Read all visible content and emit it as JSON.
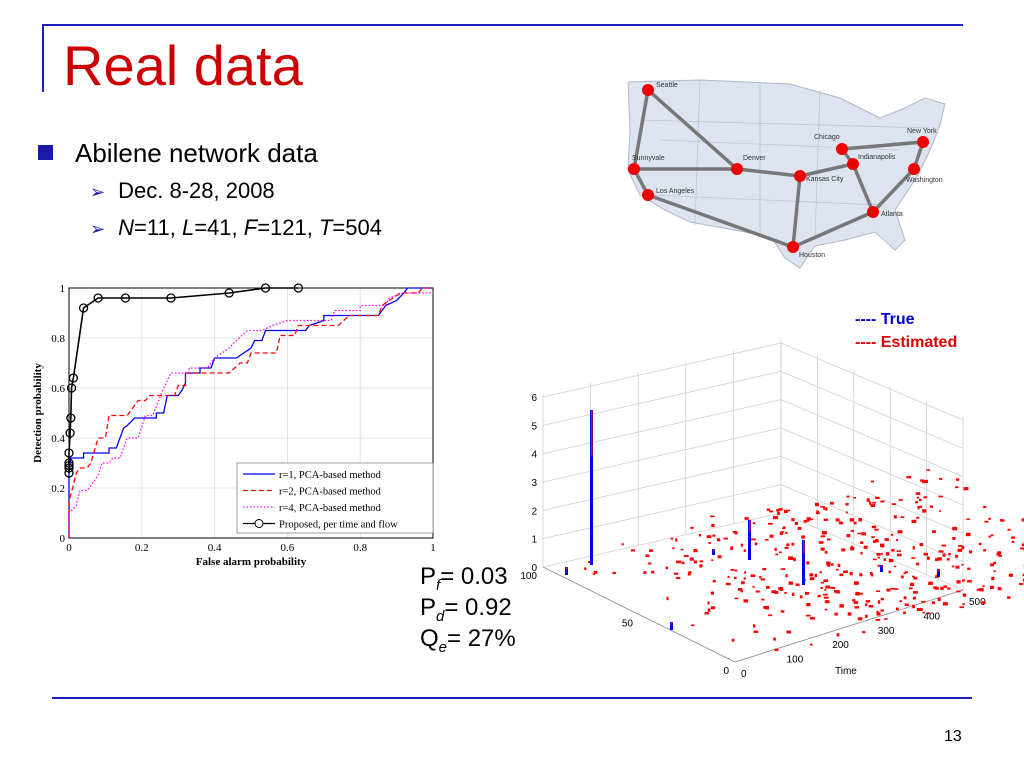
{
  "slide": {
    "title": "Real data",
    "bullet": "Abilene network data",
    "sub_bullets": {
      "dates": "Dec. 8-28, 2008",
      "params": [
        {
          "var": "N",
          "val": "=11, "
        },
        {
          "var": "L",
          "val": "=41, "
        },
        {
          "var": "F",
          "val": "=121, "
        },
        {
          "var": "T",
          "val": "=504"
        }
      ]
    },
    "page_number": "13",
    "stats": [
      {
        "sym": "P",
        "sub": "f",
        "val": "= 0.03"
      },
      {
        "sym": "P",
        "sub": "d",
        "val": "= 0.92"
      },
      {
        "sym": "Q",
        "sub": "e",
        "val": "= 27%"
      }
    ],
    "accent": "#1f1fbf",
    "title_color": "#cc0000"
  },
  "map": {
    "cities": [
      "Seattle",
      "Sunnyvale",
      "Los Angeles",
      "Denver",
      "Kansas City",
      "Houston",
      "Chicago",
      "Indianapolis",
      "New York",
      "Washington",
      "Atlanta"
    ]
  },
  "plot3d": {
    "legend_true": "---- True",
    "legend_estimated": "----  Estimated",
    "z_ticks": [
      "0",
      "1",
      "2",
      "3",
      "4",
      "5",
      "6"
    ],
    "time_ticks": [
      "0",
      "100",
      "200",
      "300",
      "400",
      "500"
    ],
    "flow_ticks": [
      "0",
      "50",
      "100"
    ],
    "time_label": "Time"
  },
  "chart_data": {
    "type": "line",
    "title": "",
    "xlabel": "False alarm probability",
    "ylabel": "Detection probability",
    "xlim": [
      0,
      1
    ],
    "ylim": [
      0,
      1
    ],
    "x_ticks": [
      "0",
      "0.2",
      "0.4",
      "0.6",
      "0.8",
      "1"
    ],
    "y_ticks": [
      "0",
      "0.2",
      "0.4",
      "0.6",
      "0.8",
      "1"
    ],
    "grid": true,
    "legend_position": "bottom-right",
    "series": [
      {
        "name": "r=1, PCA-based method",
        "color": "#0000ff",
        "style": "solid",
        "points": [
          [
            0,
            0
          ],
          [
            0,
            0.26
          ],
          [
            0.005,
            0.32
          ],
          [
            0.04,
            0.32
          ],
          [
            0.04,
            0.34
          ],
          [
            0.11,
            0.34
          ],
          [
            0.11,
            0.36
          ],
          [
            0.13,
            0.36
          ],
          [
            0.15,
            0.44
          ],
          [
            0.16,
            0.45
          ],
          [
            0.18,
            0.48
          ],
          [
            0.24,
            0.48
          ],
          [
            0.24,
            0.5
          ],
          [
            0.26,
            0.5
          ],
          [
            0.27,
            0.57
          ],
          [
            0.3,
            0.57
          ],
          [
            0.31,
            0.59
          ],
          [
            0.32,
            0.62
          ],
          [
            0.32,
            0.66
          ],
          [
            0.36,
            0.66
          ],
          [
            0.36,
            0.68
          ],
          [
            0.39,
            0.68
          ],
          [
            0.4,
            0.72
          ],
          [
            0.46,
            0.72
          ],
          [
            0.48,
            0.74
          ],
          [
            0.5,
            0.76
          ],
          [
            0.51,
            0.79
          ],
          [
            0.53,
            0.79
          ],
          [
            0.54,
            0.83
          ],
          [
            0.65,
            0.83
          ],
          [
            0.66,
            0.85
          ],
          [
            0.7,
            0.87
          ],
          [
            0.7,
            0.89
          ],
          [
            0.85,
            0.89
          ],
          [
            0.87,
            0.93
          ],
          [
            0.9,
            0.95
          ],
          [
            0.92,
            0.98
          ],
          [
            0.93,
            1
          ],
          [
            1,
            1
          ]
        ]
      },
      {
        "name": "r=2, PCA-based method",
        "color": "#ff0000",
        "style": "dashed",
        "points": [
          [
            0,
            0
          ],
          [
            0,
            0.15
          ],
          [
            0.01,
            0.2
          ],
          [
            0.02,
            0.26
          ],
          [
            0.03,
            0.28
          ],
          [
            0.05,
            0.28
          ],
          [
            0.06,
            0.3
          ],
          [
            0.08,
            0.4
          ],
          [
            0.1,
            0.4
          ],
          [
            0.11,
            0.49
          ],
          [
            0.16,
            0.49
          ],
          [
            0.17,
            0.51
          ],
          [
            0.19,
            0.55
          ],
          [
            0.21,
            0.55
          ],
          [
            0.22,
            0.57
          ],
          [
            0.29,
            0.57
          ],
          [
            0.3,
            0.61
          ],
          [
            0.32,
            0.61
          ],
          [
            0.32,
            0.66
          ],
          [
            0.44,
            0.66
          ],
          [
            0.47,
            0.7
          ],
          [
            0.49,
            0.7
          ],
          [
            0.5,
            0.74
          ],
          [
            0.57,
            0.74
          ],
          [
            0.58,
            0.81
          ],
          [
            0.62,
            0.81
          ],
          [
            0.63,
            0.85
          ],
          [
            0.74,
            0.85
          ],
          [
            0.77,
            0.89
          ],
          [
            0.85,
            0.89
          ],
          [
            0.86,
            0.93
          ],
          [
            0.89,
            0.96
          ],
          [
            0.91,
            0.98
          ],
          [
            0.96,
            0.98
          ],
          [
            0.97,
            1
          ],
          [
            1,
            1
          ]
        ]
      },
      {
        "name": "r=4, PCA-based method",
        "color": "#ff00ff",
        "style": "dotted",
        "points": [
          [
            0,
            0
          ],
          [
            0,
            0.1
          ],
          [
            0.02,
            0.13
          ],
          [
            0.03,
            0.19
          ],
          [
            0.05,
            0.19
          ],
          [
            0.06,
            0.21
          ],
          [
            0.08,
            0.25
          ],
          [
            0.09,
            0.3
          ],
          [
            0.11,
            0.3
          ],
          [
            0.12,
            0.32
          ],
          [
            0.14,
            0.32
          ],
          [
            0.16,
            0.4
          ],
          [
            0.19,
            0.4
          ],
          [
            0.21,
            0.49
          ],
          [
            0.23,
            0.49
          ],
          [
            0.26,
            0.6
          ],
          [
            0.28,
            0.66
          ],
          [
            0.33,
            0.66
          ],
          [
            0.33,
            0.68
          ],
          [
            0.38,
            0.68
          ],
          [
            0.4,
            0.72
          ],
          [
            0.44,
            0.76
          ],
          [
            0.46,
            0.79
          ],
          [
            0.49,
            0.83
          ],
          [
            0.53,
            0.83
          ],
          [
            0.56,
            0.85
          ],
          [
            0.6,
            0.87
          ],
          [
            0.72,
            0.87
          ],
          [
            0.73,
            0.91
          ],
          [
            0.8,
            0.91
          ],
          [
            0.8,
            0.93
          ],
          [
            0.87,
            0.93
          ],
          [
            0.88,
            0.96
          ],
          [
            0.92,
            0.98
          ],
          [
            1,
            0.98
          ]
        ]
      },
      {
        "name": "Proposed, per time and flow",
        "color": "#000000",
        "style": "solid-circle",
        "points": [
          [
            0,
            0.26
          ],
          [
            0,
            0.28
          ],
          [
            0,
            0.29
          ],
          [
            0,
            0.3
          ],
          [
            0,
            0.34
          ],
          [
            0.003,
            0.42
          ],
          [
            0.005,
            0.48
          ],
          [
            0.007,
            0.6
          ],
          [
            0.012,
            0.64
          ],
          [
            0.04,
            0.92
          ],
          [
            0.08,
            0.96
          ],
          [
            0.155,
            0.96
          ],
          [
            0.28,
            0.96
          ],
          [
            0.44,
            0.98
          ],
          [
            0.54,
            1
          ],
          [
            0.63,
            1
          ]
        ]
      }
    ]
  }
}
